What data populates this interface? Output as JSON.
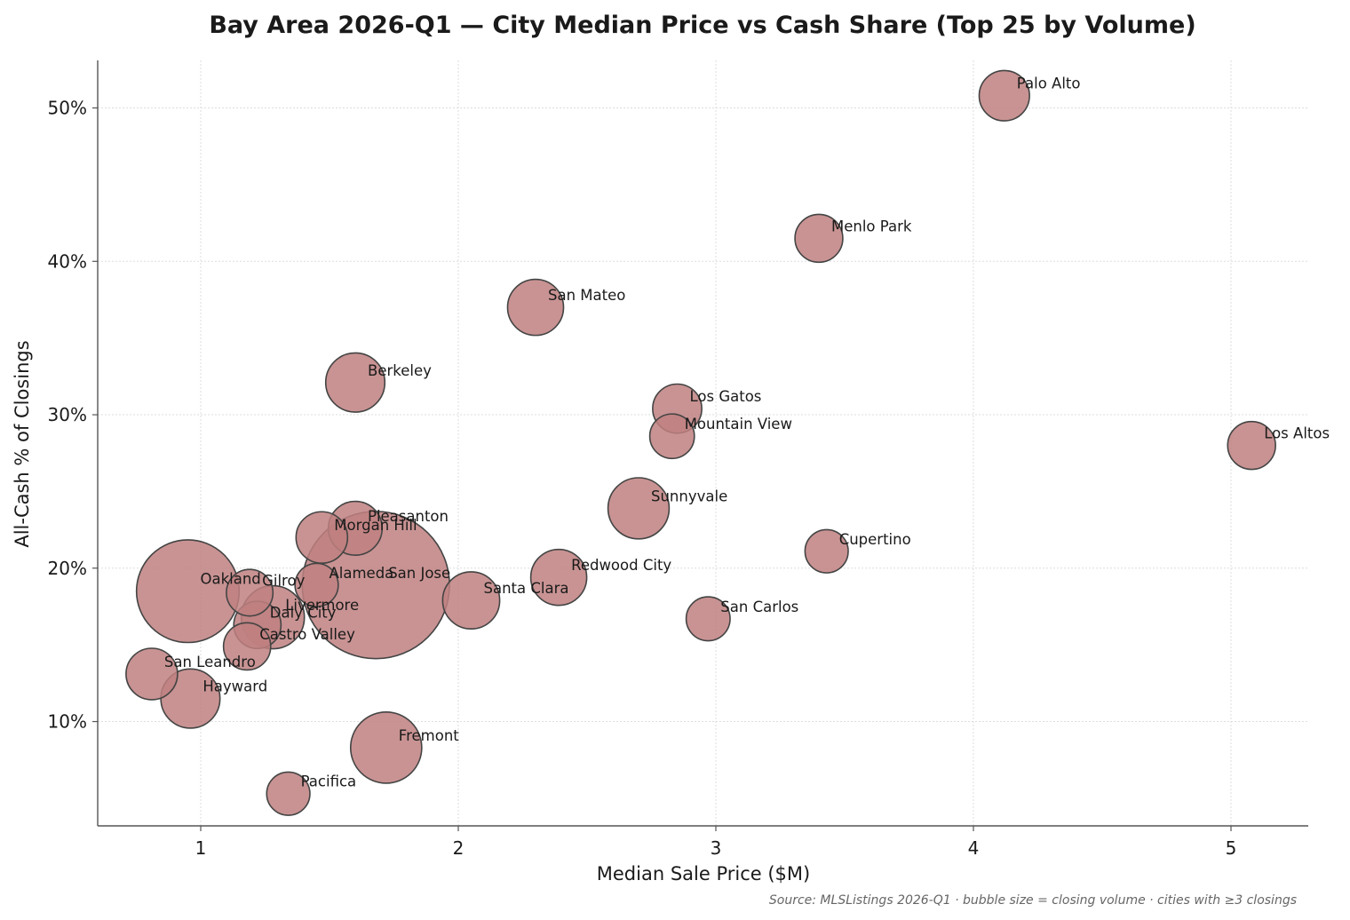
{
  "chart_data": {
    "type": "scatter",
    "title": "Bay Area 2026-Q1 — City Median Price vs Cash Share (Top 25 by Volume)",
    "xlabel": "Median Sale Price ($M)",
    "ylabel": "All-Cash % of Closings",
    "xlim": [
      0.6,
      5.3
    ],
    "ylim": [
      3.2,
      53.1
    ],
    "xticks": [
      {
        "value": 1,
        "label": "1"
      },
      {
        "value": 2,
        "label": "2"
      },
      {
        "value": 3,
        "label": "3"
      },
      {
        "value": 4,
        "label": "4"
      },
      {
        "value": 5,
        "label": "5"
      }
    ],
    "yticks": [
      {
        "value": 10,
        "label": "10%"
      },
      {
        "value": 20,
        "label": "20%"
      },
      {
        "value": 30,
        "label": "30%"
      },
      {
        "value": 40,
        "label": "40%"
      },
      {
        "value": 50,
        "label": "50%"
      }
    ],
    "grid": true,
    "bubble_color": "#c08080",
    "bubble_edge_color": "#444444",
    "points": [
      {
        "city": "Palo Alto",
        "x": 4.12,
        "y": 50.8,
        "volume": 42
      },
      {
        "city": "Menlo Park",
        "x": 3.4,
        "y": 41.5,
        "volume": 38
      },
      {
        "city": "San Mateo",
        "x": 2.3,
        "y": 37.0,
        "volume": 52
      },
      {
        "city": "Berkeley",
        "x": 1.6,
        "y": 32.1,
        "volume": 58
      },
      {
        "city": "Los Gatos",
        "x": 2.85,
        "y": 30.4,
        "volume": 40
      },
      {
        "city": "Mountain View",
        "x": 2.83,
        "y": 28.6,
        "volume": 33
      },
      {
        "city": "Los Altos",
        "x": 5.08,
        "y": 28.0,
        "volume": 38
      },
      {
        "city": "Sunnyvale",
        "x": 2.7,
        "y": 23.9,
        "volume": 62
      },
      {
        "city": "Pleasanton",
        "x": 1.6,
        "y": 22.6,
        "volume": 48
      },
      {
        "city": "Morgan Hill",
        "x": 1.47,
        "y": 22.0,
        "volume": 44
      },
      {
        "city": "Cupertino",
        "x": 3.43,
        "y": 21.1,
        "volume": 31
      },
      {
        "city": "Redwood City",
        "x": 2.39,
        "y": 19.4,
        "volume": 52
      },
      {
        "city": "San Jose",
        "x": 1.68,
        "y": 18.9,
        "volume": 360
      },
      {
        "city": "Alameda",
        "x": 1.45,
        "y": 18.9,
        "volume": 31
      },
      {
        "city": "Oakland",
        "x": 0.95,
        "y": 18.5,
        "volume": 175
      },
      {
        "city": "Gilroy",
        "x": 1.19,
        "y": 18.4,
        "volume": 36
      },
      {
        "city": "Santa Clara",
        "x": 2.05,
        "y": 17.9,
        "volume": 54
      },
      {
        "city": "Livermore",
        "x": 1.28,
        "y": 16.8,
        "volume": 66
      },
      {
        "city": "San Carlos",
        "x": 2.97,
        "y": 16.7,
        "volume": 32
      },
      {
        "city": "Daly City",
        "x": 1.22,
        "y": 16.3,
        "volume": 37
      },
      {
        "city": "Castro Valley",
        "x": 1.18,
        "y": 14.9,
        "volume": 37
      },
      {
        "city": "San Leandro",
        "x": 0.81,
        "y": 13.1,
        "volume": 44
      },
      {
        "city": "Hayward",
        "x": 0.96,
        "y": 11.5,
        "volume": 58
      },
      {
        "city": "Fremont",
        "x": 1.72,
        "y": 8.3,
        "volume": 84
      },
      {
        "city": "Pacifica",
        "x": 1.34,
        "y": 5.3,
        "volume": 31
      }
    ],
    "source_note": "Source: MLSListings 2026-Q1 · bubble size = closing volume · cities with ≥3 closings"
  }
}
